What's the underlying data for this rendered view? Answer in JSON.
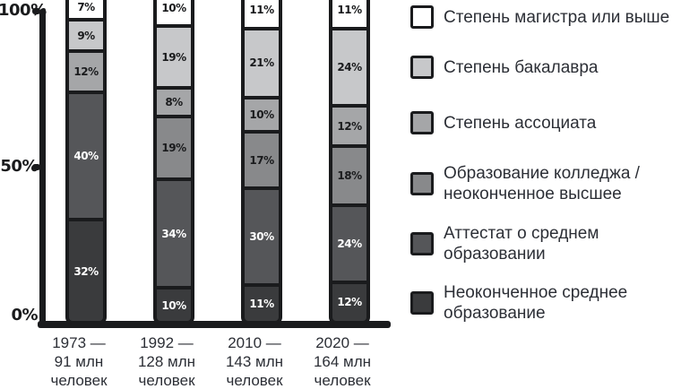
{
  "chart_data": {
    "type": "bar",
    "stacked": true,
    "orientation": "vertical",
    "unit": "%",
    "grid": false,
    "legend_position": "right",
    "y_axis": {
      "ticks": [
        "100%",
        "50%",
        "0%"
      ],
      "range": [
        0,
        100
      ]
    },
    "categories": [
      {
        "key": "master",
        "label": "Степень магистра или выше",
        "color": "#ffffff"
      },
      {
        "key": "bachelor",
        "label": "Степень бакалавра",
        "color": "#c7c8ca"
      },
      {
        "key": "associate",
        "label": "Степень ассоциата",
        "color": "#a5a6a8"
      },
      {
        "key": "college",
        "label": "Образование колледжа / неоконченное высшее",
        "color": "#88898b"
      },
      {
        "key": "highschool",
        "label": "Аттестат о среднем образовании",
        "color": "#555659"
      },
      {
        "key": "dropout",
        "label": "Неоконченное среднее образование",
        "color": "#3a3b3d"
      }
    ],
    "bars": [
      {
        "axis_label": "1973 —\n91 млн\nчеловек",
        "segments": [
          {
            "category": "master",
            "value": 7,
            "label": "7%"
          },
          {
            "category": "bachelor",
            "value": 9,
            "label": "9%"
          },
          {
            "category": "associate",
            "value": 12,
            "label": "12%"
          },
          {
            "category": "highschool",
            "value": 40,
            "label": "40%"
          },
          {
            "category": "dropout",
            "value": 32,
            "label": "32%"
          }
        ]
      },
      {
        "axis_label": "1992 —\n128 млн\nчеловек",
        "segments": [
          {
            "category": "master",
            "value": 10,
            "label": "10%"
          },
          {
            "category": "bachelor",
            "value": 19,
            "label": "19%"
          },
          {
            "category": "associate",
            "value": 8,
            "label": "8%"
          },
          {
            "category": "college",
            "value": 19,
            "label": "19%"
          },
          {
            "category": "highschool",
            "value": 34,
            "label": "34%"
          },
          {
            "category": "dropout",
            "value": 10,
            "label": "10%"
          }
        ]
      },
      {
        "axis_label": "2010 —\n143 млн\nчеловек",
        "segments": [
          {
            "category": "master",
            "value": 11,
            "label": "11%"
          },
          {
            "category": "bachelor",
            "value": 21,
            "label": "21%"
          },
          {
            "category": "associate",
            "value": 10,
            "label": "10%"
          },
          {
            "category": "college",
            "value": 17,
            "label": "17%"
          },
          {
            "category": "highschool",
            "value": 30,
            "label": "30%"
          },
          {
            "category": "dropout",
            "value": 11,
            "label": "11%"
          }
        ]
      },
      {
        "axis_label": "2020 —\n164 млн\nчеловек",
        "segments": [
          {
            "category": "master",
            "value": 11,
            "label": "11%"
          },
          {
            "category": "bachelor",
            "value": 24,
            "label": "24%"
          },
          {
            "category": "associate",
            "value": 12,
            "label": "12%"
          },
          {
            "category": "college",
            "value": 18,
            "label": "18%"
          },
          {
            "category": "highschool",
            "value": 24,
            "label": "24%"
          },
          {
            "category": "dropout",
            "value": 12,
            "label": "12%"
          }
        ]
      }
    ],
    "colors": {
      "ink": "#1a1b1d",
      "text": "#2c2f36"
    }
  }
}
